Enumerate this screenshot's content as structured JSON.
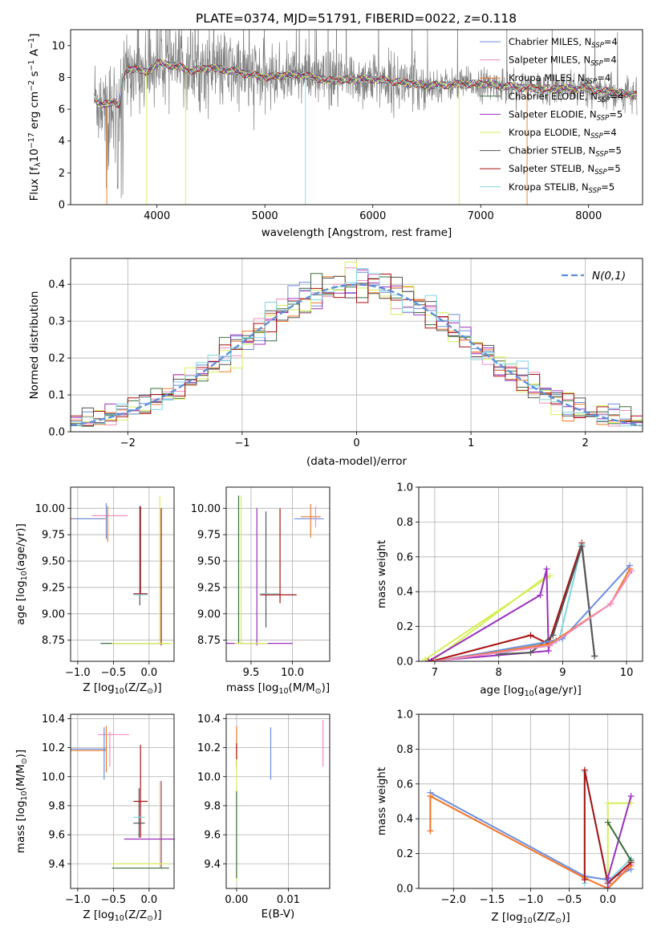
{
  "title": "PLATE=0374, MJD=51791, FIBERID=0022, z=0.118",
  "colors": {
    "chabrier_miles": "#6b8ee0",
    "salpeter_miles": "#f08cbf",
    "kroupa_miles": "#f07a28",
    "chabrier_elodie": "#3c6e3c",
    "salpeter_elodie": "#9b30c0",
    "kroupa_elodie": "#d6ee55",
    "chabrier_stelib": "#555555",
    "salpeter_stelib": "#aa1010",
    "kroupa_stelib": "#7fd6e0",
    "data": "#808080",
    "normal": "#5b8fd8"
  },
  "chart_data": [
    {
      "id": "spectrum",
      "type": "line",
      "title": "PLATE=0374, MJD=51791, FIBERID=0022, z=0.118",
      "xlabel": "wavelength [Angstrom, rest frame]",
      "ylabel_parts": [
        "Flux [f",
        "λ",
        "10",
        "−17",
        " erg cm",
        "−2",
        " s",
        "−1",
        " A",
        "−1",
        "]"
      ],
      "xlim": [
        3200,
        8500
      ],
      "ylim": [
        0,
        11
      ],
      "xticks": [
        4000,
        5000,
        6000,
        7000,
        8000
      ],
      "yticks": [
        0,
        2,
        4,
        6,
        8,
        10
      ],
      "legend_position": "top-right",
      "series": [
        {
          "name": "Chabrier MILES",
          "nssp": "4",
          "color_key": "chabrier_miles"
        },
        {
          "name": "Salpeter MILES",
          "nssp": "4",
          "color_key": "salpeter_miles"
        },
        {
          "name": "Kroupa MILES",
          "nssp": "4",
          "color_key": "kroupa_miles"
        },
        {
          "name": "Chabrier ELODIE",
          "nssp": "4",
          "color_key": "chabrier_elodie"
        },
        {
          "name": "Salpeter ELODIE",
          "nssp": "5",
          "color_key": "salpeter_elodie"
        },
        {
          "name": "Kroupa ELODIE",
          "nssp": "4",
          "color_key": "kroupa_elodie"
        },
        {
          "name": "Chabrier STELIB",
          "nssp": "5",
          "color_key": "chabrier_stelib"
        },
        {
          "name": "Salpeter STELIB",
          "nssp": "5",
          "color_key": "salpeter_stelib"
        },
        {
          "name": "Kroupa STELIB",
          "nssp": "5",
          "color_key": "kroupa_stelib"
        }
      ],
      "legend_nssp_prefix": "N",
      "legend_nssp_sub": "SSP",
      "model_continuum": {
        "x": [
          3400,
          3450,
          3500,
          3550,
          3600,
          3650,
          3700,
          3800,
          3900,
          4000,
          4100,
          4200,
          4300,
          4400,
          4500,
          4700,
          5000,
          5300,
          5600,
          6000,
          6500,
          7000,
          7500,
          8000,
          8400
        ],
        "y": [
          7.0,
          6.5,
          6.3,
          6.3,
          6.5,
          6.3,
          8.3,
          8.6,
          8.3,
          8.9,
          8.8,
          8.7,
          8.4,
          8.5,
          8.6,
          8.4,
          8.0,
          8.2,
          7.8,
          7.9,
          7.5,
          7.6,
          7.3,
          7.3,
          6.9
        ]
      },
      "spike_wavelengths": [
        3905,
        4265,
        5376,
        6800,
        7430
      ]
    },
    {
      "id": "residuals",
      "type": "line",
      "xlabel": "(data-model)/error",
      "ylabel": "Normed distribution",
      "xlim": [
        -2.5,
        2.5
      ],
      "ylim": [
        0,
        0.47
      ],
      "xticks": [
        -2,
        -1,
        0,
        1,
        2
      ],
      "yticks": [
        0.0,
        0.1,
        0.2,
        0.3,
        0.4
      ],
      "legend_position": "top-right",
      "legend_label": "N(0,1)",
      "bin_width": 0.1
    },
    {
      "id": "age-vs-Z",
      "type": "scatter",
      "xlabel_main": "Z [log",
      "xlabel_sub": "10",
      "xlabel_rest": "(Z/Z",
      "xlabel_sun": "⊙",
      "xlabel_end": ")]",
      "ylabel_main": "age  [log",
      "ylabel_sub": "10",
      "ylabel_rest": "(age/yr)]",
      "xlim": [
        -1.1,
        0.35
      ],
      "ylim": [
        8.55,
        10.2
      ],
      "xticks": [
        -1.0,
        -0.5,
        0.0
      ],
      "yticks": [
        8.75,
        9.0,
        9.25,
        9.5,
        9.75,
        10.0
      ],
      "points": [
        {
          "x": -0.85,
          "y": 9.9,
          "xerr": 0.25,
          "yerr": 0.0,
          "color_key": "kroupa_miles"
        },
        {
          "x": -0.55,
          "y": 9.93,
          "xerr": 0.25,
          "yerr": 0.0,
          "color_key": "salpeter_miles"
        },
        {
          "x": -0.85,
          "y": 9.9,
          "xerr": 0.22,
          "yerr": 0.0,
          "color_key": "chabrier_miles"
        },
        {
          "x": -0.6,
          "y": 9.88,
          "xerr": 0.0,
          "yerr": 0.17,
          "color_key": "chabrier_miles"
        },
        {
          "x": -0.58,
          "y": 9.85,
          "xerr": 0.0,
          "yerr": 0.17,
          "color_key": "kroupa_miles"
        },
        {
          "x": -0.13,
          "y": 9.55,
          "xerr": 0.0,
          "yerr": 0.47,
          "color_key": "chabrier_stelib"
        },
        {
          "x": -0.12,
          "y": 9.6,
          "xerr": 0.0,
          "yerr": 0.42,
          "color_key": "salpeter_stelib"
        },
        {
          "x": -0.12,
          "y": 9.19,
          "xerr": 0.1,
          "yerr": 0.0,
          "color_key": "salpeter_stelib"
        },
        {
          "x": -0.12,
          "y": 9.18,
          "xerr": 0.1,
          "yerr": 0.0,
          "color_key": "kroupa_stelib"
        },
        {
          "x": 0.15,
          "y": 9.42,
          "xerr": 0.0,
          "yerr": 0.7,
          "color_key": "kroupa_elodie"
        },
        {
          "x": 0.17,
          "y": 9.35,
          "xerr": 0.0,
          "yerr": 0.65,
          "color_key": "salpeter_stelib"
        },
        {
          "x": -0.2,
          "y": 8.72,
          "xerr": 0.48,
          "yerr": 0.0,
          "color_key": "chabrier_elodie"
        },
        {
          "x": -0.1,
          "y": 8.72,
          "xerr": 0.42,
          "yerr": 0.0,
          "color_key": "kroupa_elodie"
        }
      ]
    },
    {
      "id": "age-vs-mass",
      "type": "scatter",
      "xlabel_main": "mass [log",
      "xlabel_sub": "10",
      "xlabel_rest": "(M/M",
      "xlabel_sun": "⊙",
      "xlabel_end": ")]",
      "xlim": [
        9.2,
        10.45
      ],
      "ylim": [
        8.55,
        10.2
      ],
      "xticks": [
        9.5,
        10.0
      ],
      "yticks": [
        8.75,
        9.0,
        9.25,
        9.5,
        9.75,
        10.0
      ],
      "points": [
        {
          "x": 9.38,
          "y": 9.42,
          "xerr": 0.0,
          "yerr": 0.7,
          "color_key": "kroupa_elodie"
        },
        {
          "x": 9.35,
          "y": 9.42,
          "xerr": 0.0,
          "yerr": 0.7,
          "color_key": "chabrier_elodie"
        },
        {
          "x": 9.57,
          "y": 9.35,
          "xerr": 0.0,
          "yerr": 0.65,
          "color_key": "salpeter_elodie"
        },
        {
          "x": 9.68,
          "y": 9.42,
          "xerr": 0.0,
          "yerr": 0.55,
          "color_key": "chabrier_stelib"
        },
        {
          "x": 9.85,
          "y": 9.55,
          "xerr": 0.0,
          "yerr": 0.45,
          "color_key": "salpeter_stelib"
        },
        {
          "x": 9.83,
          "y": 9.18,
          "xerr": 0.22,
          "yerr": 0.0,
          "color_key": "salpeter_stelib"
        },
        {
          "x": 9.72,
          "y": 9.19,
          "xerr": 0.12,
          "yerr": 0.0,
          "color_key": "kroupa_stelib"
        },
        {
          "x": 10.2,
          "y": 9.9,
          "xerr": 0.18,
          "yerr": 0.0,
          "color_key": "chabrier_miles"
        },
        {
          "x": 10.22,
          "y": 9.92,
          "xerr": 0.12,
          "yerr": 0.0,
          "color_key": "kroupa_miles"
        },
        {
          "x": 10.22,
          "y": 9.88,
          "xerr": 0.0,
          "yerr": 0.16,
          "color_key": "kroupa_miles"
        },
        {
          "x": 10.28,
          "y": 9.92,
          "xerr": 0.0,
          "yerr": 0.1,
          "color_key": "salpeter_miles"
        },
        {
          "x": 9.6,
          "y": 8.72,
          "xerr": 0.4,
          "yerr": 0.0,
          "color_key": "salpeter_elodie"
        },
        {
          "x": 9.5,
          "y": 8.72,
          "xerr": 0.2,
          "yerr": 0.0,
          "color_key": "kroupa_elodie"
        }
      ]
    },
    {
      "id": "mass-weight-vs-age",
      "type": "line",
      "xlabel_main": "age  [log",
      "xlabel_sub": "10",
      "xlabel_rest": "(age/yr)]",
      "ylabel": "mass weight",
      "xlim": [
        6.75,
        10.25
      ],
      "ylim": [
        0,
        1
      ],
      "xticks": [
        7,
        8,
        9,
        10
      ],
      "yticks": [
        0.0,
        0.2,
        0.4,
        0.6,
        0.8,
        1.0
      ],
      "series": [
        {
          "color_key": "kroupa_elodie",
          "x": [
            6.85,
            6.95,
            8.75,
            8.8,
            6.85
          ],
          "y": [
            0.01,
            0.0,
            0.49,
            0.49,
            0.01
          ]
        },
        {
          "color_key": "salpeter_elodie",
          "x": [
            6.9,
            8.65,
            8.75,
            8.78,
            6.9
          ],
          "y": [
            0.0,
            0.38,
            0.53,
            0.06,
            0.0
          ]
        },
        {
          "color_key": "salpeter_stelib",
          "x": [
            6.95,
            8.5,
            8.78,
            9.3,
            9.5
          ],
          "y": [
            0.0,
            0.15,
            0.1,
            0.68,
            0.03
          ]
        },
        {
          "color_key": "kroupa_stelib",
          "x": [
            8.0,
            8.95,
            9.3,
            9.5
          ],
          "y": [
            0.04,
            0.13,
            0.67,
            0.03
          ]
        },
        {
          "color_key": "chabrier_stelib",
          "x": [
            8.0,
            8.5,
            8.85,
            9.3,
            9.5
          ],
          "y": [
            0.04,
            0.05,
            0.15,
            0.66,
            0.03
          ]
        },
        {
          "color_key": "chabrier_miles",
          "x": [
            7.0,
            8.9,
            9.0,
            10.05
          ],
          "y": [
            0.0,
            0.12,
            0.13,
            0.55
          ]
        },
        {
          "color_key": "kroupa_miles",
          "x": [
            7.0,
            8.8,
            9.75,
            10.05
          ],
          "y": [
            0.0,
            0.1,
            0.33,
            0.53
          ]
        },
        {
          "color_key": "salpeter_miles",
          "x": [
            7.0,
            8.8,
            9.75,
            10.08
          ],
          "y": [
            0.0,
            0.09,
            0.33,
            0.52
          ]
        }
      ]
    },
    {
      "id": "mass-vs-Z",
      "type": "scatter",
      "xlabel_main": "Z [log",
      "xlabel_sub": "10",
      "xlabel_rest": "(Z/Z",
      "xlabel_sun": "⊙",
      "xlabel_end": ")]",
      "ylabel_main": "mass [log",
      "ylabel_sub": "10",
      "ylabel_rest": "(M/M",
      "ylabel_sun": "⊙",
      "ylabel_end": ")]",
      "xlim": [
        -1.1,
        0.35
      ],
      "ylim": [
        9.23,
        10.43
      ],
      "xticks": [
        -1.0,
        -0.5,
        0.0
      ],
      "yticks": [
        9.4,
        9.6,
        9.8,
        10.0,
        10.2,
        10.4
      ],
      "points": [
        {
          "x": -0.85,
          "y": 10.19,
          "xerr": 0.25,
          "yerr": 0.0,
          "color_key": "chabrier_miles"
        },
        {
          "x": -0.85,
          "y": 10.18,
          "xerr": 0.25,
          "yerr": 0.0,
          "color_key": "kroupa_miles"
        },
        {
          "x": -0.5,
          "y": 10.29,
          "xerr": 0.22,
          "yerr": 0.0,
          "color_key": "salpeter_miles"
        },
        {
          "x": -0.63,
          "y": 10.16,
          "xerr": 0.0,
          "yerr": 0.18,
          "color_key": "chabrier_miles"
        },
        {
          "x": -0.6,
          "y": 10.19,
          "xerr": 0.0,
          "yerr": 0.16,
          "color_key": "kroupa_miles"
        },
        {
          "x": -0.55,
          "y": 10.19,
          "xerr": 0.0,
          "yerr": 0.12,
          "color_key": "salpeter_miles"
        },
        {
          "x": -0.12,
          "y": 9.83,
          "xerr": 0.1,
          "yerr": 0.0,
          "color_key": "salpeter_stelib"
        },
        {
          "x": -0.12,
          "y": 9.9,
          "xerr": 0.0,
          "yerr": 0.32,
          "color_key": "salpeter_stelib"
        },
        {
          "x": -0.14,
          "y": 9.68,
          "xerr": 0.08,
          "yerr": 0.0,
          "color_key": "chabrier_stelib"
        },
        {
          "x": -0.14,
          "y": 9.75,
          "xerr": 0.0,
          "yerr": 0.17,
          "color_key": "chabrier_stelib"
        },
        {
          "x": -0.14,
          "y": 9.72,
          "xerr": 0.08,
          "yerr": 0.0,
          "color_key": "kroupa_stelib"
        },
        {
          "x": 0.15,
          "y": 9.67,
          "xerr": 0.0,
          "yerr": 0.3,
          "color_key": "kroupa_elodie"
        },
        {
          "x": 0.17,
          "y": 9.67,
          "xerr": 0.0,
          "yerr": 0.3,
          "color_key": "salpeter_elodie"
        },
        {
          "x": 0.0,
          "y": 9.57,
          "xerr": 0.35,
          "yerr": 0.0,
          "color_key": "salpeter_elodie"
        },
        {
          "x": -0.12,
          "y": 9.37,
          "xerr": 0.4,
          "yerr": 0.0,
          "color_key": "chabrier_elodie"
        },
        {
          "x": -0.12,
          "y": 9.4,
          "xerr": 0.4,
          "yerr": 0.0,
          "color_key": "kroupa_elodie"
        }
      ]
    },
    {
      "id": "mass-vs-EBV",
      "type": "scatter",
      "xlabel": "E(B-V)",
      "xlim": [
        -0.002,
        0.018
      ],
      "ylim": [
        9.23,
        10.43
      ],
      "xticks": [
        0.0,
        0.01
      ],
      "xtick_labels": [
        "0.00",
        "0.01"
      ],
      "yticks": [
        9.4,
        9.6,
        9.8,
        10.0,
        10.2,
        10.4
      ],
      "points": [
        {
          "x": 0.0,
          "y": 10.2,
          "xerr": 0.0,
          "yerr": 0.15,
          "color_key": "kroupa_miles"
        },
        {
          "x": 0.0,
          "y": 10.15,
          "xerr": 0.0,
          "yerr": 0.08,
          "color_key": "salpeter_stelib"
        },
        {
          "x": 0.0,
          "y": 9.7,
          "xerr": 0.0,
          "yerr": 0.42,
          "color_key": "kroupa_elodie"
        },
        {
          "x": 0.0,
          "y": 9.6,
          "xerr": 0.0,
          "yerr": 0.3,
          "color_key": "chabrier_elodie"
        },
        {
          "x": 0.0066,
          "y": 10.16,
          "xerr": 0.0,
          "yerr": 0.18,
          "color_key": "chabrier_miles"
        },
        {
          "x": 0.0167,
          "y": 10.23,
          "xerr": 0.0,
          "yerr": 0.16,
          "color_key": "salpeter_miles"
        }
      ]
    },
    {
      "id": "mass-weight-vs-Z",
      "type": "line",
      "xlabel_main": "Z [log",
      "xlabel_sub": "10",
      "xlabel_rest": "(Z/Z",
      "xlabel_sun": "⊙",
      "xlabel_end": ")]",
      "ylabel": "mass weight",
      "xlim": [
        -2.45,
        0.45
      ],
      "ylim": [
        0,
        1
      ],
      "xticks": [
        -2.0,
        -1.5,
        -1.0,
        -0.5,
        0.0
      ],
      "yticks": [
        0.0,
        0.2,
        0.4,
        0.6,
        0.8,
        1.0
      ],
      "series": [
        {
          "color_key": "chabrier_miles",
          "x": [
            -2.3,
            -0.3,
            0.0,
            0.3
          ],
          "y": [
            0.55,
            0.07,
            0.05,
            0.11
          ]
        },
        {
          "color_key": "salpeter_miles",
          "x": [
            -2.3,
            -2.3,
            -0.3,
            0.0,
            0.3
          ],
          "y": [
            0.33,
            0.53,
            0.06,
            0.0,
            0.14
          ]
        },
        {
          "color_key": "kroupa_miles",
          "x": [
            -2.3,
            -2.3,
            -0.3,
            0.0,
            0.3
          ],
          "y": [
            0.33,
            0.53,
            0.06,
            0.0,
            0.13
          ]
        },
        {
          "color_key": "kroupa_stelib",
          "x": [
            -0.3,
            -0.3,
            0.0,
            0.3
          ],
          "y": [
            0.03,
            0.67,
            0.04,
            0.17
          ]
        },
        {
          "color_key": "salpeter_stelib",
          "x": [
            -0.3,
            -0.3,
            0.0,
            0.3
          ],
          "y": [
            0.05,
            0.68,
            0.03,
            0.15
          ]
        },
        {
          "color_key": "kroupa_elodie",
          "x": [
            0.0,
            0.0,
            0.3
          ],
          "y": [
            0.0,
            0.49,
            0.49
          ]
        },
        {
          "color_key": "salpeter_elodie",
          "x": [
            0.0,
            0.0,
            0.3
          ],
          "y": [
            0.0,
            0.06,
            0.53
          ]
        },
        {
          "color_key": "chabrier_elodie",
          "x": [
            0.0,
            0.3
          ],
          "y": [
            0.38,
            0.16
          ]
        }
      ]
    }
  ]
}
